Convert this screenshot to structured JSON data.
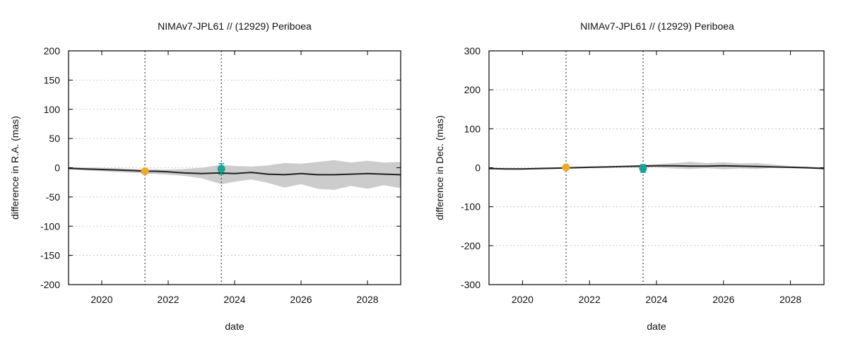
{
  "chart_data": [
    {
      "type": "line",
      "title": "NIMAv7-JPL61 // (12929) Periboea",
      "xlabel": "date",
      "ylabel": "difference in R.A. (mas)",
      "xlim": [
        2019.0,
        2029.0
      ],
      "ylim": [
        -200,
        200
      ],
      "xticks": [
        2020,
        2022,
        2024,
        2026,
        2028
      ],
      "yticks": [
        -200,
        -150,
        -100,
        -50,
        0,
        50,
        100,
        150,
        200
      ],
      "grid": true,
      "colors": {
        "line": "#222222",
        "band": "#cccccc",
        "orange": "#f5a623",
        "teal": "#17a398",
        "vline": "#444444"
      },
      "vlines": [
        2021.3,
        2023.6
      ],
      "series": [
        {
          "kind": "line",
          "x": [
            2019.0,
            2019.5,
            2020.0,
            2020.5,
            2021.0,
            2021.3,
            2021.6,
            2022.0,
            2022.5,
            2023.0,
            2023.5,
            2024.0,
            2024.5,
            2025.0,
            2025.5,
            2026.0,
            2026.5,
            2027.0,
            2027.5,
            2028.0,
            2028.5,
            2029.0
          ],
          "y": [
            -1,
            -2,
            -3,
            -4,
            -5,
            -6,
            -6,
            -7,
            -9,
            -10,
            -9,
            -10,
            -8,
            -11,
            -12,
            -10,
            -12,
            -12,
            -11,
            -10,
            -11,
            -12
          ]
        },
        {
          "kind": "band",
          "x": [
            2019.0,
            2020.0,
            2021.0,
            2022.0,
            2022.5,
            2023.0,
            2023.6,
            2024.0,
            2024.5,
            2025.0,
            2025.5,
            2026.0,
            2026.5,
            2027.0,
            2027.5,
            2028.0,
            2028.5,
            2029.0
          ],
          "upper": [
            1,
            0,
            -2,
            -3,
            -2,
            0,
            5,
            3,
            2,
            4,
            8,
            7,
            10,
            13,
            9,
            12,
            9,
            10
          ],
          "lower": [
            -3,
            -6,
            -9,
            -12,
            -14,
            -18,
            -28,
            -24,
            -20,
            -26,
            -34,
            -28,
            -36,
            -38,
            -31,
            -36,
            -30,
            -35
          ]
        },
        {
          "kind": "point",
          "color": "orange",
          "x": 2021.3,
          "y": -6,
          "err": 2
        },
        {
          "kind": "point",
          "color": "teal",
          "x": 2023.6,
          "y": -2,
          "err": 9
        }
      ]
    },
    {
      "type": "line",
      "title": "NIMAv7-JPL61 // (12929) Periboea",
      "xlabel": "date",
      "ylabel": "difference in Dec. (mas)",
      "xlim": [
        2019.0,
        2029.0
      ],
      "ylim": [
        -300,
        300
      ],
      "xticks": [
        2020,
        2022,
        2024,
        2026,
        2028
      ],
      "yticks": [
        -300,
        -200,
        -100,
        0,
        100,
        200,
        300
      ],
      "grid": true,
      "colors": {
        "line": "#222222",
        "band": "#cccccc",
        "orange": "#f5a623",
        "teal": "#17a398",
        "vline": "#444444"
      },
      "vlines": [
        2021.3,
        2023.6
      ],
      "series": [
        {
          "kind": "line",
          "x": [
            2019.0,
            2019.5,
            2020.0,
            2020.5,
            2021.0,
            2021.5,
            2022.0,
            2022.5,
            2023.0,
            2023.5,
            2024.0,
            2024.5,
            2025.0,
            2025.5,
            2026.0,
            2026.5,
            2027.0,
            2027.5,
            2028.0,
            2028.5,
            2029.0
          ],
          "y": [
            -2,
            -3,
            -3,
            -2,
            -1,
            0,
            1,
            2,
            3,
            4,
            5,
            5,
            4,
            4,
            5,
            4,
            3,
            2,
            1,
            0,
            -2
          ]
        },
        {
          "kind": "band",
          "x": [
            2019.0,
            2020.0,
            2021.0,
            2022.0,
            2023.0,
            2023.6,
            2024.0,
            2024.5,
            2025.0,
            2025.5,
            2026.0,
            2026.5,
            2027.0,
            2027.5,
            2028.0,
            2029.0
          ],
          "upper": [
            0,
            -1,
            1,
            3,
            5,
            8,
            9,
            12,
            15,
            12,
            14,
            11,
            12,
            8,
            4,
            1
          ],
          "lower": [
            -4,
            -5,
            -3,
            -1,
            1,
            0,
            1,
            -2,
            -3,
            -1,
            -4,
            -2,
            -3,
            0,
            -1,
            -4
          ]
        },
        {
          "kind": "point",
          "color": "orange",
          "x": 2021.3,
          "y": 1,
          "err": 2
        },
        {
          "kind": "point",
          "color": "teal",
          "x": 2023.6,
          "y": -2,
          "err": 10
        }
      ]
    }
  ]
}
